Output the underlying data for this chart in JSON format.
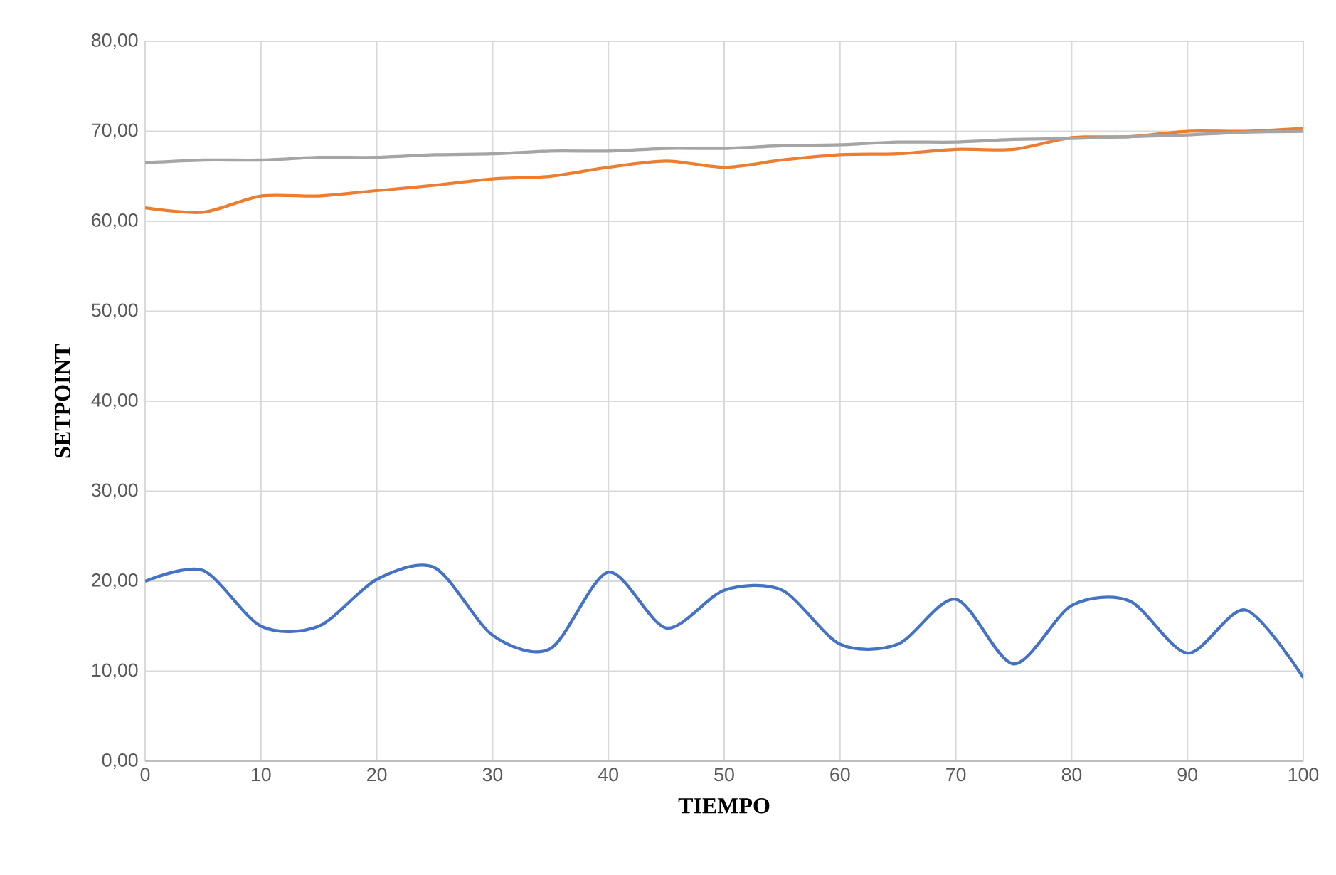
{
  "chart_data": {
    "type": "line",
    "xlabel": "TIEMPO",
    "ylabel": "SETPOINT",
    "x": [
      0,
      5,
      10,
      15,
      20,
      25,
      30,
      35,
      40,
      45,
      50,
      55,
      60,
      65,
      70,
      75,
      80,
      85,
      90,
      95,
      100
    ],
    "series": [
      {
        "color": "#4472c4",
        "values": [
          20,
          21.2,
          15,
          15,
          20.2,
          21.5,
          14,
          12.5,
          21,
          14.8,
          19,
          19,
          13,
          13,
          18,
          10.8,
          17.3,
          17.8,
          12,
          16.8,
          9.3
        ]
      },
      {
        "color": "#ed7d31",
        "values": [
          61.5,
          61,
          62.8,
          62.8,
          63.4,
          64,
          64.7,
          65,
          66,
          66.7,
          66,
          66.8,
          67.4,
          67.5,
          68,
          68,
          69.3,
          69.4,
          70,
          70,
          70.3
        ]
      },
      {
        "color": "#a5a5a5",
        "values": [
          66.5,
          66.8,
          66.8,
          67.1,
          67.1,
          67.4,
          67.5,
          67.8,
          67.8,
          68.1,
          68.1,
          68.4,
          68.5,
          68.8,
          68.8,
          69.1,
          69.2,
          69.4,
          69.6,
          69.9,
          70
        ]
      }
    ],
    "xlim": [
      0,
      100
    ],
    "xticks": [
      0,
      10,
      20,
      30,
      40,
      50,
      60,
      70,
      80,
      90,
      100
    ],
    "ylim": [
      0,
      80
    ],
    "yticks": [
      {
        "value": 0,
        "label": "0,00"
      },
      {
        "value": 10,
        "label": "10,00"
      },
      {
        "value": 20,
        "label": "20,00"
      },
      {
        "value": 30,
        "label": "30,00"
      },
      {
        "value": 40,
        "label": "40,00"
      },
      {
        "value": 50,
        "label": "50,00"
      },
      {
        "value": 60,
        "label": "60,00"
      },
      {
        "value": 70,
        "label": "70,00"
      },
      {
        "value": 80,
        "label": "80,00"
      }
    ],
    "grid": true,
    "line_style": "solid",
    "marker": "none"
  }
}
